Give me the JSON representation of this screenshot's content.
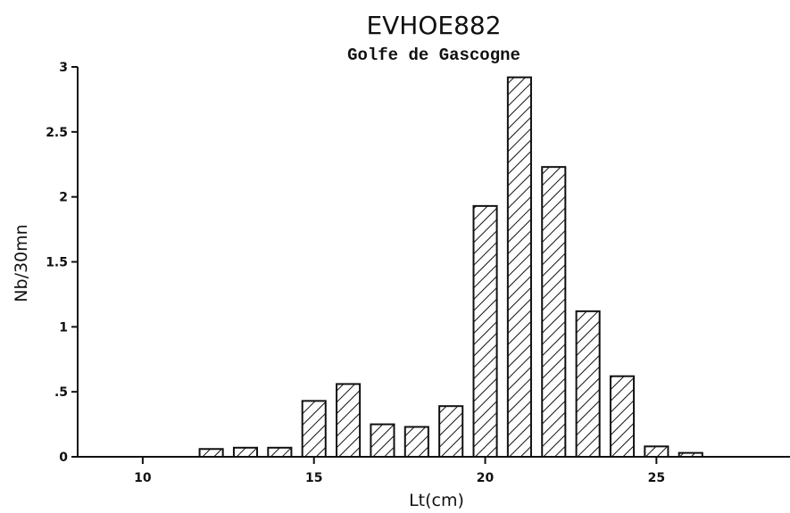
{
  "chart_data": {
    "type": "bar",
    "title": "EVHOE882",
    "subtitle": "Golfe de Gascogne",
    "xlabel": "Lt(cm)",
    "ylabel": "Nb/30mn",
    "x": [
      9,
      10,
      11,
      12,
      13,
      14,
      15,
      16,
      17,
      18,
      19,
      20,
      21,
      22,
      23,
      24,
      25,
      26,
      27,
      28
    ],
    "values": [
      0,
      0,
      0,
      0.06,
      0.07,
      0.07,
      0.43,
      0.56,
      0.25,
      0.23,
      0.39,
      1.93,
      2.92,
      2.23,
      1.12,
      0.62,
      0.08,
      0.03,
      0,
      0
    ],
    "xlim": [
      8.1,
      28.9
    ],
    "ylim": [
      0,
      3
    ],
    "xticks": [
      10,
      15,
      20,
      25
    ],
    "xtick_labels": [
      "10",
      "15",
      "20",
      "25"
    ],
    "yticks": [
      0,
      0.5,
      1,
      1.5,
      2,
      2.5,
      3
    ],
    "ytick_labels": [
      "0",
      ".5",
      "1",
      "1.5",
      "2",
      "2.5",
      "3"
    ],
    "fill_pattern": "diagonal-hatch",
    "grid": false
  }
}
